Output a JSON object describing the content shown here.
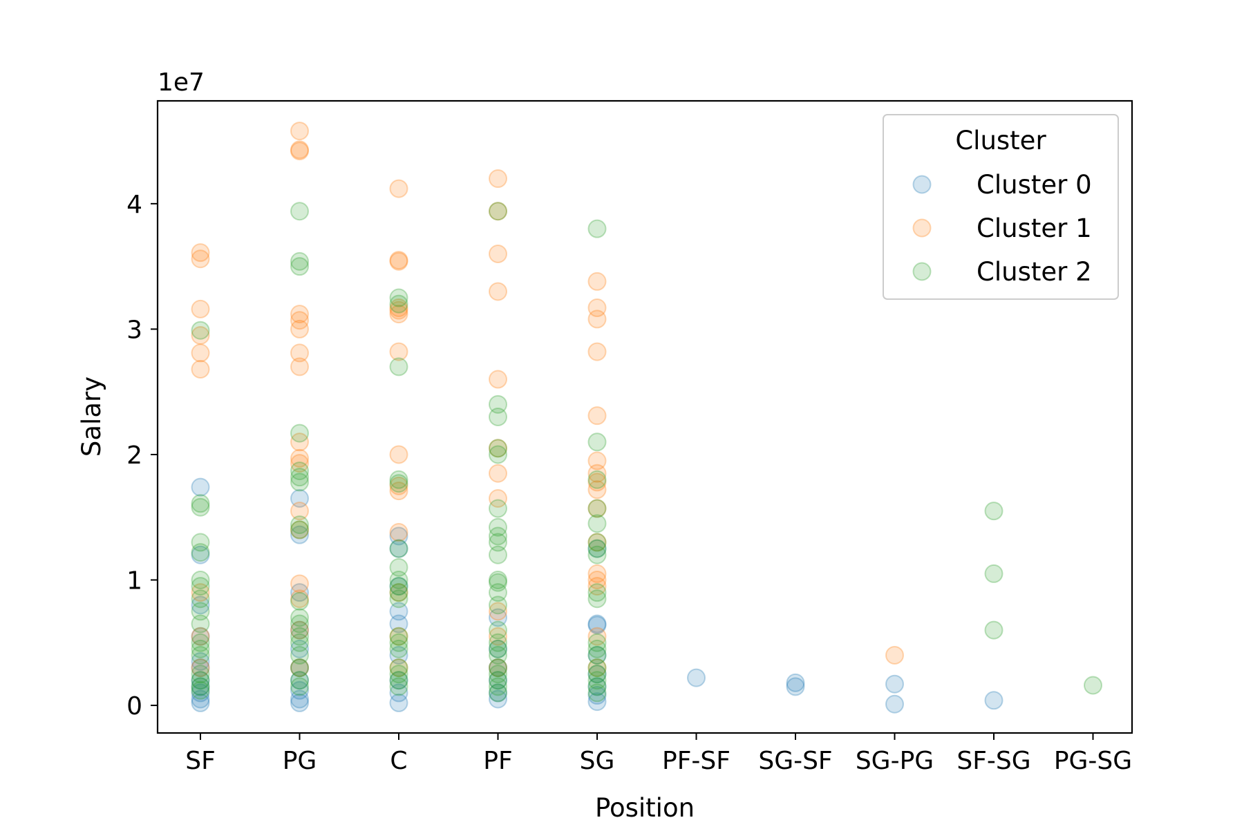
{
  "chart_data": {
    "type": "scatter",
    "xlabel": "Position",
    "ylabel": "Salary",
    "offset_label": "1e7",
    "categories": [
      "SF",
      "PG",
      "C",
      "PF",
      "SG",
      "PF-SF",
      "SG-SF",
      "SG-PG",
      "SF-SG",
      "PG-SG"
    ],
    "ylim": [
      -0.22,
      4.82
    ],
    "yticks": [
      0,
      1,
      2,
      3,
      4
    ],
    "ytick_labels": [
      "0",
      "1",
      "2",
      "3",
      "4"
    ],
    "grid": false,
    "legend": {
      "title": "Cluster",
      "placement": "top-right"
    },
    "marker_alpha": 0.2,
    "series": [
      {
        "name": "Cluster 0",
        "color": "#1f77b4",
        "points": [
          [
            "SF",
            1.74
          ],
          [
            "SF",
            0.55
          ],
          [
            "SF",
            0.35
          ],
          [
            "SF",
            0.2
          ],
          [
            "SF",
            0.1
          ],
          [
            "SF",
            0.05
          ],
          [
            "SF",
            0.02
          ],
          [
            "SF",
            0.15
          ],
          [
            "SF",
            0.3
          ],
          [
            "SF",
            0.8
          ],
          [
            "SF",
            1.2
          ],
          [
            "PG",
            1.65
          ],
          [
            "PG",
            1.36
          ],
          [
            "PG",
            0.45
          ],
          [
            "PG",
            0.3
          ],
          [
            "PG",
            0.2
          ],
          [
            "PG",
            0.12
          ],
          [
            "PG",
            0.05
          ],
          [
            "PG",
            0.02
          ],
          [
            "PG",
            0.9
          ],
          [
            "PG",
            0.6
          ],
          [
            "C",
            1.35
          ],
          [
            "C",
            1.25
          ],
          [
            "C",
            0.95
          ],
          [
            "C",
            0.75
          ],
          [
            "C",
            0.65
          ],
          [
            "C",
            0.4
          ],
          [
            "C",
            0.2
          ],
          [
            "C",
            0.1
          ],
          [
            "C",
            0.02
          ],
          [
            "PF",
            0.45
          ],
          [
            "PF",
            0.3
          ],
          [
            "PF",
            0.2
          ],
          [
            "PF",
            0.1
          ],
          [
            "PF",
            0.05
          ],
          [
            "PF",
            0.7
          ],
          [
            "SG",
            0.65
          ],
          [
            "SG",
            0.64
          ],
          [
            "SG",
            0.4
          ],
          [
            "SG",
            0.25
          ],
          [
            "SG",
            0.15
          ],
          [
            "SG",
            0.08
          ],
          [
            "SG",
            0.03
          ],
          [
            "SG",
            1.25
          ],
          [
            "PF-SF",
            0.22
          ],
          [
            "SG-SF",
            0.18
          ],
          [
            "SG-SF",
            0.15
          ],
          [
            "SG-PG",
            0.17
          ],
          [
            "SG-PG",
            0.01
          ],
          [
            "SF-SG",
            0.04
          ]
        ]
      },
      {
        "name": "Cluster 1",
        "color": "#ff7f0e",
        "points": [
          [
            "SF",
            3.61
          ],
          [
            "SF",
            3.56
          ],
          [
            "SF",
            3.16
          ],
          [
            "SF",
            2.95
          ],
          [
            "SF",
            2.81
          ],
          [
            "SF",
            2.68
          ],
          [
            "SF",
            0.9
          ],
          [
            "SF",
            0.55
          ],
          [
            "SF",
            0.3
          ],
          [
            "PG",
            4.58
          ],
          [
            "PG",
            4.43
          ],
          [
            "PG",
            4.42
          ],
          [
            "PG",
            3.12
          ],
          [
            "PG",
            3.07
          ],
          [
            "PG",
            3.0
          ],
          [
            "PG",
            2.81
          ],
          [
            "PG",
            2.7
          ],
          [
            "PG",
            2.1
          ],
          [
            "PG",
            1.97
          ],
          [
            "PG",
            1.93
          ],
          [
            "PG",
            1.55
          ],
          [
            "PG",
            1.4
          ],
          [
            "PG",
            0.97
          ],
          [
            "PG",
            0.85
          ],
          [
            "PG",
            0.6
          ],
          [
            "PG",
            0.3
          ],
          [
            "C",
            4.12
          ],
          [
            "C",
            3.55
          ],
          [
            "C",
            3.54
          ],
          [
            "C",
            3.17
          ],
          [
            "C",
            3.15
          ],
          [
            "C",
            3.12
          ],
          [
            "C",
            2.82
          ],
          [
            "C",
            2.0
          ],
          [
            "C",
            1.75
          ],
          [
            "C",
            1.71
          ],
          [
            "C",
            1.38
          ],
          [
            "C",
            0.9
          ],
          [
            "C",
            0.55
          ],
          [
            "C",
            0.3
          ],
          [
            "PF",
            4.2
          ],
          [
            "PF",
            3.94
          ],
          [
            "PF",
            3.6
          ],
          [
            "PF",
            3.3
          ],
          [
            "PF",
            2.6
          ],
          [
            "PF",
            2.05
          ],
          [
            "PF",
            1.85
          ],
          [
            "PF",
            1.65
          ],
          [
            "PF",
            0.75
          ],
          [
            "PF",
            0.55
          ],
          [
            "PF",
            0.3
          ],
          [
            "SG",
            3.38
          ],
          [
            "SG",
            3.17
          ],
          [
            "SG",
            3.08
          ],
          [
            "SG",
            2.82
          ],
          [
            "SG",
            2.31
          ],
          [
            "SG",
            1.95
          ],
          [
            "SG",
            1.85
          ],
          [
            "SG",
            1.78
          ],
          [
            "SG",
            1.72
          ],
          [
            "SG",
            1.57
          ],
          [
            "SG",
            1.3
          ],
          [
            "SG",
            1.05
          ],
          [
            "SG",
            1.0
          ],
          [
            "SG",
            0.95
          ],
          [
            "SG",
            0.55
          ],
          [
            "SG",
            0.3
          ],
          [
            "SG-PG",
            0.4
          ]
        ]
      },
      {
        "name": "Cluster 2",
        "color": "#2ca02c",
        "points": [
          [
            "SF",
            2.99
          ],
          [
            "SF",
            1.61
          ],
          [
            "SF",
            1.58
          ],
          [
            "SF",
            1.3
          ],
          [
            "SF",
            1.22
          ],
          [
            "SF",
            1.0
          ],
          [
            "SF",
            0.95
          ],
          [
            "SF",
            0.85
          ],
          [
            "SF",
            0.75
          ],
          [
            "SF",
            0.65
          ],
          [
            "SF",
            0.5
          ],
          [
            "SF",
            0.45
          ],
          [
            "SF",
            0.4
          ],
          [
            "SF",
            0.25
          ],
          [
            "SF",
            0.2
          ],
          [
            "SF",
            0.15
          ],
          [
            "SF",
            0.12
          ],
          [
            "PG",
            3.94
          ],
          [
            "PG",
            3.54
          ],
          [
            "PG",
            3.5
          ],
          [
            "PG",
            2.17
          ],
          [
            "PG",
            1.87
          ],
          [
            "PG",
            1.82
          ],
          [
            "PG",
            1.78
          ],
          [
            "PG",
            1.44
          ],
          [
            "PG",
            1.4
          ],
          [
            "PG",
            0.83
          ],
          [
            "PG",
            0.7
          ],
          [
            "PG",
            0.65
          ],
          [
            "PG",
            0.55
          ],
          [
            "PG",
            0.5
          ],
          [
            "PG",
            0.4
          ],
          [
            "PG",
            0.3
          ],
          [
            "PG",
            0.2
          ],
          [
            "PG",
            0.15
          ],
          [
            "C",
            3.25
          ],
          [
            "C",
            3.2
          ],
          [
            "C",
            2.7
          ],
          [
            "C",
            1.8
          ],
          [
            "C",
            1.77
          ],
          [
            "C",
            1.25
          ],
          [
            "C",
            1.1
          ],
          [
            "C",
            1.0
          ],
          [
            "C",
            0.95
          ],
          [
            "C",
            0.9
          ],
          [
            "C",
            0.85
          ],
          [
            "C",
            0.55
          ],
          [
            "C",
            0.5
          ],
          [
            "C",
            0.45
          ],
          [
            "C",
            0.3
          ],
          [
            "C",
            0.25
          ],
          [
            "C",
            0.2
          ],
          [
            "C",
            0.15
          ],
          [
            "PF",
            3.94
          ],
          [
            "PF",
            2.4
          ],
          [
            "PF",
            2.3
          ],
          [
            "PF",
            2.05
          ],
          [
            "PF",
            2.0
          ],
          [
            "PF",
            1.57
          ],
          [
            "PF",
            1.42
          ],
          [
            "PF",
            1.35
          ],
          [
            "PF",
            1.3
          ],
          [
            "PF",
            1.2
          ],
          [
            "PF",
            1.0
          ],
          [
            "PF",
            0.98
          ],
          [
            "PF",
            0.9
          ],
          [
            "PF",
            0.8
          ],
          [
            "PF",
            0.6
          ],
          [
            "PF",
            0.5
          ],
          [
            "PF",
            0.45
          ],
          [
            "PF",
            0.4
          ],
          [
            "PF",
            0.3
          ],
          [
            "PF",
            0.25
          ],
          [
            "PF",
            0.2
          ],
          [
            "PF",
            0.15
          ],
          [
            "PF",
            0.1
          ],
          [
            "SG",
            3.8
          ],
          [
            "SG",
            2.1
          ],
          [
            "SG",
            1.8
          ],
          [
            "SG",
            1.57
          ],
          [
            "SG",
            1.45
          ],
          [
            "SG",
            1.3
          ],
          [
            "SG",
            1.25
          ],
          [
            "SG",
            1.2
          ],
          [
            "SG",
            0.9
          ],
          [
            "SG",
            0.85
          ],
          [
            "SG",
            0.5
          ],
          [
            "SG",
            0.45
          ],
          [
            "SG",
            0.4
          ],
          [
            "SG",
            0.3
          ],
          [
            "SG",
            0.25
          ],
          [
            "SG",
            0.2
          ],
          [
            "SG",
            0.15
          ],
          [
            "SG",
            0.1
          ],
          [
            "SF-SG",
            1.55
          ],
          [
            "SF-SG",
            1.05
          ],
          [
            "SF-SG",
            0.6
          ],
          [
            "PG-SG",
            0.16
          ]
        ]
      }
    ]
  }
}
